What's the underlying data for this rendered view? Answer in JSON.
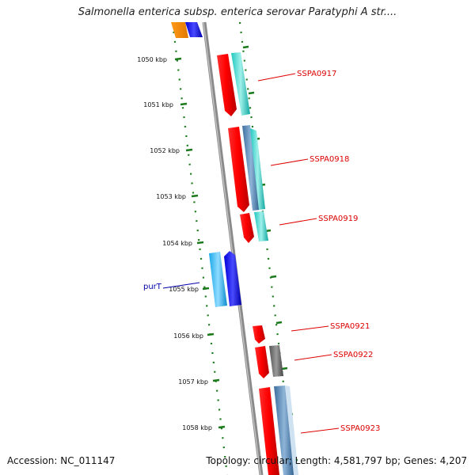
{
  "title": "Salmonella enterica subsp. enterica serovar Paratyphi A str....",
  "footer": {
    "accession": "Accession: NC_011147",
    "summary": "Topology: circular; Length: 4,581,797 bp; Genes: 4,207"
  },
  "colors": {
    "backbone": "#8a8a8a",
    "ruler": "#1a7a1a",
    "feature_label": "#dd0000",
    "gene_label": "#0000aa"
  },
  "ruler": {
    "unit": "kbp",
    "ticks": [
      "1050 kbp",
      "1051 kbp",
      "1052 kbp",
      "1053 kbp",
      "1054 kbp",
      "1055 kbp",
      "1056 kbp",
      "1057 kbp",
      "1058 kbp"
    ]
  },
  "feature_labels": [
    {
      "text": "SSPA0917",
      "color": "#dd0000"
    },
    {
      "text": "SSPA0918",
      "color": "#dd0000"
    },
    {
      "text": "SSPA0919",
      "color": "#dd0000"
    },
    {
      "text": "SSPA0921",
      "color": "#dd0000"
    },
    {
      "text": "SSPA0922",
      "color": "#dd0000"
    },
    {
      "text": "SSPA0923",
      "color": "#dd0000"
    },
    {
      "text": "purT",
      "color": "#0000aa"
    }
  ]
}
